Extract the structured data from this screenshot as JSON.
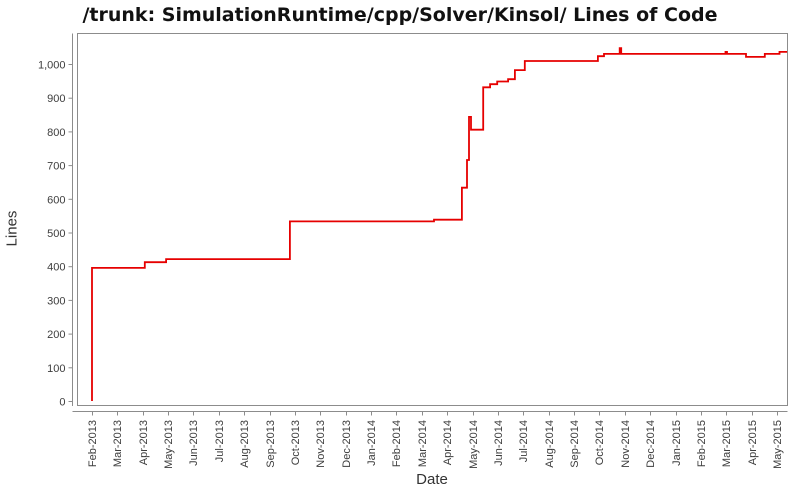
{
  "chart_data": {
    "type": "line",
    "subtype": "step",
    "title": "/trunk: SimulationRuntime/cpp/Solver/Kinsol/ Lines of Code",
    "xlabel": "Date",
    "ylabel": "Lines",
    "grid": false,
    "legend": "none",
    "line_color": "#e60000",
    "axis_color": "#8c8c8c",
    "x_unit": "months since Feb-2013",
    "x_tick_labels": [
      "Feb-2013",
      "Mar-2013",
      "Apr-2013",
      "May-2013",
      "Jun-2013",
      "Jul-2013",
      "Aug-2013",
      "Sep-2013",
      "Oct-2013",
      "Nov-2013",
      "Dec-2013",
      "Jan-2014",
      "Feb-2014",
      "Mar-2014",
      "Apr-2014",
      "May-2014",
      "Jun-2014",
      "Jul-2014",
      "Aug-2014",
      "Sep-2014",
      "Oct-2014",
      "Nov-2014",
      "Dec-2014",
      "Jan-2015",
      "Feb-2015",
      "Mar-2015",
      "Apr-2015",
      "May-2015"
    ],
    "y_ticks": [
      0,
      100,
      200,
      300,
      400,
      500,
      600,
      700,
      800,
      900,
      1000
    ],
    "y_tick_labels": [
      "0",
      "100",
      "200",
      "300",
      "400",
      "500",
      "600",
      "700",
      "800",
      "900",
      "1,000"
    ],
    "ylim": [
      0,
      1090
    ],
    "series": [
      {
        "name": "Lines of Code",
        "points": [
          [
            0.0,
            0
          ],
          [
            0.0,
            395
          ],
          [
            2.08,
            395
          ],
          [
            2.08,
            412
          ],
          [
            2.92,
            412
          ],
          [
            2.92,
            421
          ],
          [
            7.8,
            421
          ],
          [
            7.8,
            533
          ],
          [
            13.48,
            533
          ],
          [
            13.48,
            538
          ],
          [
            14.58,
            538
          ],
          [
            14.58,
            633
          ],
          [
            14.78,
            633
          ],
          [
            14.78,
            715
          ],
          [
            14.86,
            715
          ],
          [
            14.86,
            843
          ],
          [
            14.94,
            843
          ],
          [
            14.94,
            805
          ],
          [
            15.42,
            805
          ],
          [
            15.42,
            931
          ],
          [
            15.69,
            931
          ],
          [
            15.69,
            940
          ],
          [
            15.97,
            940
          ],
          [
            15.97,
            948
          ],
          [
            16.4,
            948
          ],
          [
            16.4,
            955
          ],
          [
            16.67,
            955
          ],
          [
            16.67,
            982
          ],
          [
            17.06,
            982
          ],
          [
            17.06,
            1009
          ],
          [
            19.94,
            1009
          ],
          [
            19.94,
            1023
          ],
          [
            20.18,
            1023
          ],
          [
            20.18,
            1030
          ],
          [
            20.8,
            1030
          ],
          [
            20.8,
            1047
          ],
          [
            20.86,
            1047
          ],
          [
            20.86,
            1030
          ],
          [
            24.97,
            1030
          ],
          [
            24.97,
            1036
          ],
          [
            25.03,
            1036
          ],
          [
            25.03,
            1030
          ],
          [
            25.78,
            1030
          ],
          [
            25.78,
            1021
          ],
          [
            26.52,
            1021
          ],
          [
            26.52,
            1030
          ],
          [
            27.1,
            1030
          ],
          [
            27.1,
            1036
          ],
          [
            27.4,
            1036
          ]
        ]
      }
    ]
  }
}
